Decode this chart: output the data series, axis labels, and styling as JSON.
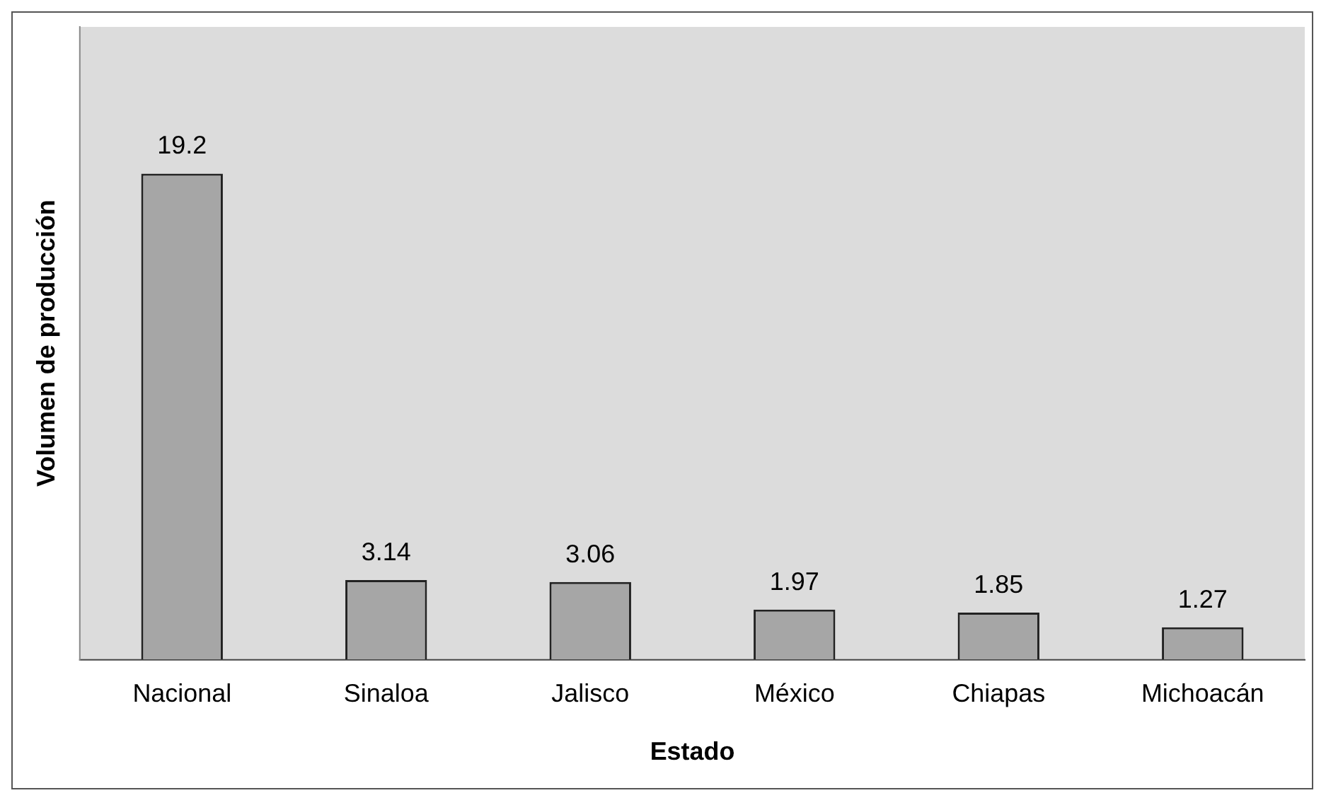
{
  "chart_data": {
    "type": "bar",
    "xlabel": "Estado",
    "ylabel": "Volumen de producción",
    "categories": [
      "Nacional",
      "Sinaloa",
      "Jalisco",
      "México",
      "Chiapas",
      "Michoacán"
    ],
    "values": [
      19.2,
      3.14,
      3.06,
      1.97,
      1.85,
      1.27
    ],
    "color": "#a6a6a6",
    "data_labels": true,
    "tick_labels": "x",
    "grid": false,
    "legend": false
  }
}
